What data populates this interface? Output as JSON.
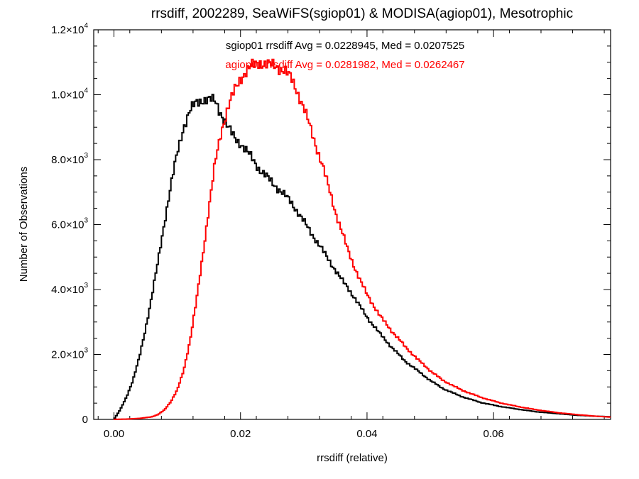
{
  "chart_data": {
    "type": "histogram",
    "title": "rrsdiff, 2002289, SeaWiFS(sgiop01) & MODISA(agiop01), Mesotrophic",
    "xlabel": "rrsdiff (relative)",
    "ylabel": "Number of Observations",
    "xlim": [
      -0.0032,
      0.0785
    ],
    "ylim": [
      0,
      12000
    ],
    "grid": false,
    "xticks": [
      {
        "value": 0.0,
        "label": "0.00"
      },
      {
        "value": 0.02,
        "label": "0.02"
      },
      {
        "value": 0.04,
        "label": "0.04"
      },
      {
        "value": 0.06,
        "label": "0.06"
      }
    ],
    "yticks": [
      {
        "value": 0,
        "label": "0"
      },
      {
        "value": 2000,
        "label": "2.0×10",
        "exp": "3"
      },
      {
        "value": 4000,
        "label": "4.0×10",
        "exp": "3"
      },
      {
        "value": 6000,
        "label": "6.0×10",
        "exp": "3"
      },
      {
        "value": 8000,
        "label": "8.0×10",
        "exp": "3"
      },
      {
        "value": 10000,
        "label": "1.0×10",
        "exp": "4"
      },
      {
        "value": 12000,
        "label": "1.2×10",
        "exp": "4"
      }
    ],
    "annotations": [
      {
        "text": "sgiop01 rrsdiff Avg = 0.0228945, Med = 0.0207525",
        "color": "#000000"
      },
      {
        "text": "agiop01 rrsdiff Avg = 0.0281982, Med = 0.0262467",
        "color": "#ff0000"
      }
    ],
    "series": [
      {
        "color": "#000000",
        "x": [
          0.0,
          0.001,
          0.002,
          0.003,
          0.004,
          0.005,
          0.006,
          0.007,
          0.008,
          0.009,
          0.01,
          0.011,
          0.012,
          0.013,
          0.014,
          0.015,
          0.016,
          0.017,
          0.018,
          0.019,
          0.02,
          0.021,
          0.022,
          0.023,
          0.024,
          0.025,
          0.026,
          0.027,
          0.028,
          0.029,
          0.03,
          0.031,
          0.032,
          0.033,
          0.034,
          0.035,
          0.036,
          0.037,
          0.038,
          0.039,
          0.04,
          0.042,
          0.044,
          0.046,
          0.048,
          0.05,
          0.052,
          0.055,
          0.058,
          0.061,
          0.064,
          0.067,
          0.07,
          0.073,
          0.076,
          0.0785
        ],
        "values": [
          0,
          300,
          700,
          1200,
          1900,
          2800,
          3800,
          4900,
          6100,
          7200,
          8200,
          9000,
          9500,
          9750,
          9850,
          9850,
          9800,
          9400,
          9000,
          8700,
          8500,
          8250,
          8000,
          7700,
          7500,
          7300,
          7100,
          6900,
          6700,
          6400,
          6100,
          5800,
          5500,
          5200,
          4900,
          4600,
          4300,
          4050,
          3750,
          3450,
          3150,
          2650,
          2200,
          1800,
          1500,
          1200,
          950,
          700,
          520,
          400,
          310,
          230,
          180,
          130,
          100,
          80
        ]
      },
      {
        "color": "#ff0000",
        "x": [
          0.0,
          0.002,
          0.004,
          0.006,
          0.007,
          0.008,
          0.009,
          0.01,
          0.011,
          0.012,
          0.013,
          0.014,
          0.015,
          0.016,
          0.017,
          0.018,
          0.019,
          0.02,
          0.021,
          0.022,
          0.023,
          0.024,
          0.025,
          0.026,
          0.027,
          0.028,
          0.029,
          0.03,
          0.031,
          0.032,
          0.033,
          0.034,
          0.035,
          0.036,
          0.037,
          0.038,
          0.039,
          0.04,
          0.042,
          0.044,
          0.046,
          0.048,
          0.05,
          0.052,
          0.055,
          0.058,
          0.061,
          0.064,
          0.067,
          0.07,
          0.073,
          0.076,
          0.0785
        ],
        "values": [
          0,
          10,
          30,
          80,
          150,
          300,
          550,
          900,
          1500,
          2400,
          3600,
          5000,
          6500,
          7900,
          8900,
          9600,
          10100,
          10500,
          10750,
          10900,
          11000,
          10950,
          10900,
          10850,
          10750,
          10500,
          10100,
          9600,
          9000,
          8400,
          7800,
          7100,
          6400,
          5800,
          5200,
          4700,
          4250,
          3850,
          3200,
          2700,
          2250,
          1850,
          1500,
          1200,
          900,
          680,
          510,
          390,
          290,
          210,
          150,
          100,
          70
        ]
      }
    ]
  }
}
